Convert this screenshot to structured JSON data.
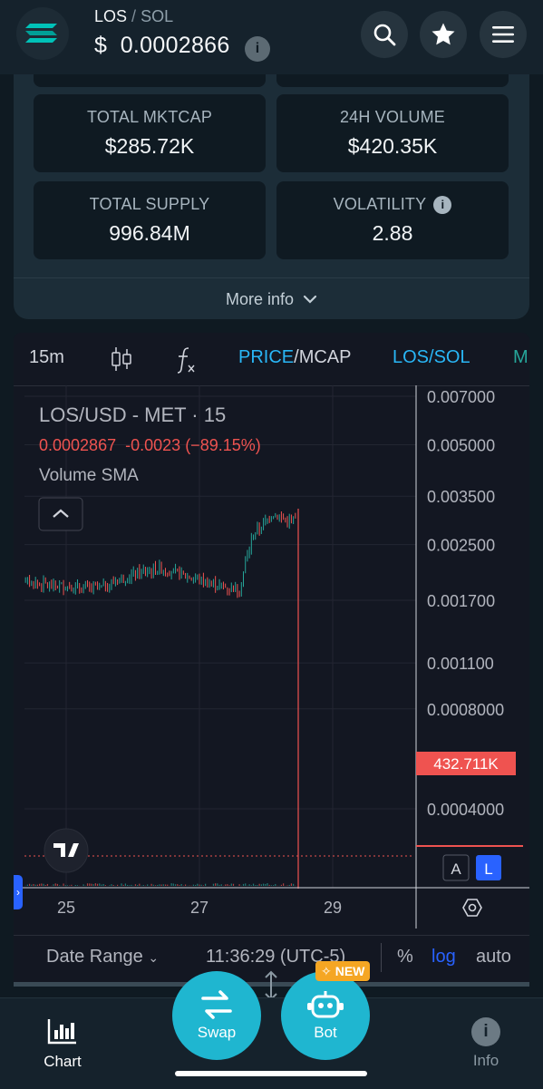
{
  "header": {
    "pair_base": "LOS",
    "pair_separator": "/",
    "pair_quote": "SOL",
    "price_symbol": "$",
    "price_value": "0.0002866",
    "info_glyph": "i"
  },
  "stats": [
    {
      "label": "TOTAL MKTCAP",
      "value": "$285.72K"
    },
    {
      "label": "24H VOLUME",
      "value": "$420.35K"
    },
    {
      "label": "TOTAL SUPPLY",
      "value": "996.84M"
    },
    {
      "label": "VOLATILITY",
      "value": "2.88"
    }
  ],
  "more_info": "More info",
  "chart": {
    "toolbar": {
      "interval": "15m",
      "price": "PRICE",
      "slash": "/",
      "mcap": "MCAP",
      "pair": "LOS/SOL",
      "cut": "M"
    },
    "legend": {
      "title": "LOS/USD - MET · 15",
      "last": "0.0002867",
      "change": "-0.0023",
      "change_pct": "(−89.15%)",
      "indicator": "Volume SMA"
    },
    "badge": "432.711K",
    "scale_buttons": [
      "A",
      "L"
    ],
    "footer": {
      "date_range": "Date Range",
      "time": "11:36:29 (UTC-5)",
      "pct": "%",
      "log": "log",
      "auto": "auto"
    },
    "colors": {
      "up": "#26a69a",
      "down": "#ef5350",
      "accent": "#2962ff",
      "link": "#29b6f6"
    }
  },
  "chart_data": {
    "type": "line",
    "title": "LOS/USD - MET · 15",
    "y_scale": "log",
    "y_ticks": [
      "0.007000",
      "0.005000",
      "0.003500",
      "0.002500",
      "0.001700",
      "0.001100",
      "0.0008000",
      "0.0004000"
    ],
    "x_ticks": [
      "25",
      "27",
      "29"
    ],
    "series": [
      {
        "name": "LOS/USD",
        "x": [
          "24.0",
          "24.3",
          "24.6",
          "24.9",
          "25.2",
          "25.5",
          "25.8",
          "26.1",
          "26.4",
          "26.7",
          "27.0",
          "27.3",
          "27.6",
          "27.8",
          "28.1",
          "28.3",
          "28.5"
        ],
        "values": [
          0.00205,
          0.00195,
          0.0019,
          0.00188,
          0.00186,
          0.00185,
          0.00196,
          0.00206,
          0.00212,
          0.00204,
          0.00196,
          0.00188,
          0.00183,
          0.00265,
          0.0031,
          0.00296,
          0.00029
        ]
      }
    ]
  },
  "bottom_nav": {
    "chart": "Chart",
    "swap": "Swap",
    "bot": "Bot",
    "new_badge": "NEW",
    "info": "Info"
  }
}
